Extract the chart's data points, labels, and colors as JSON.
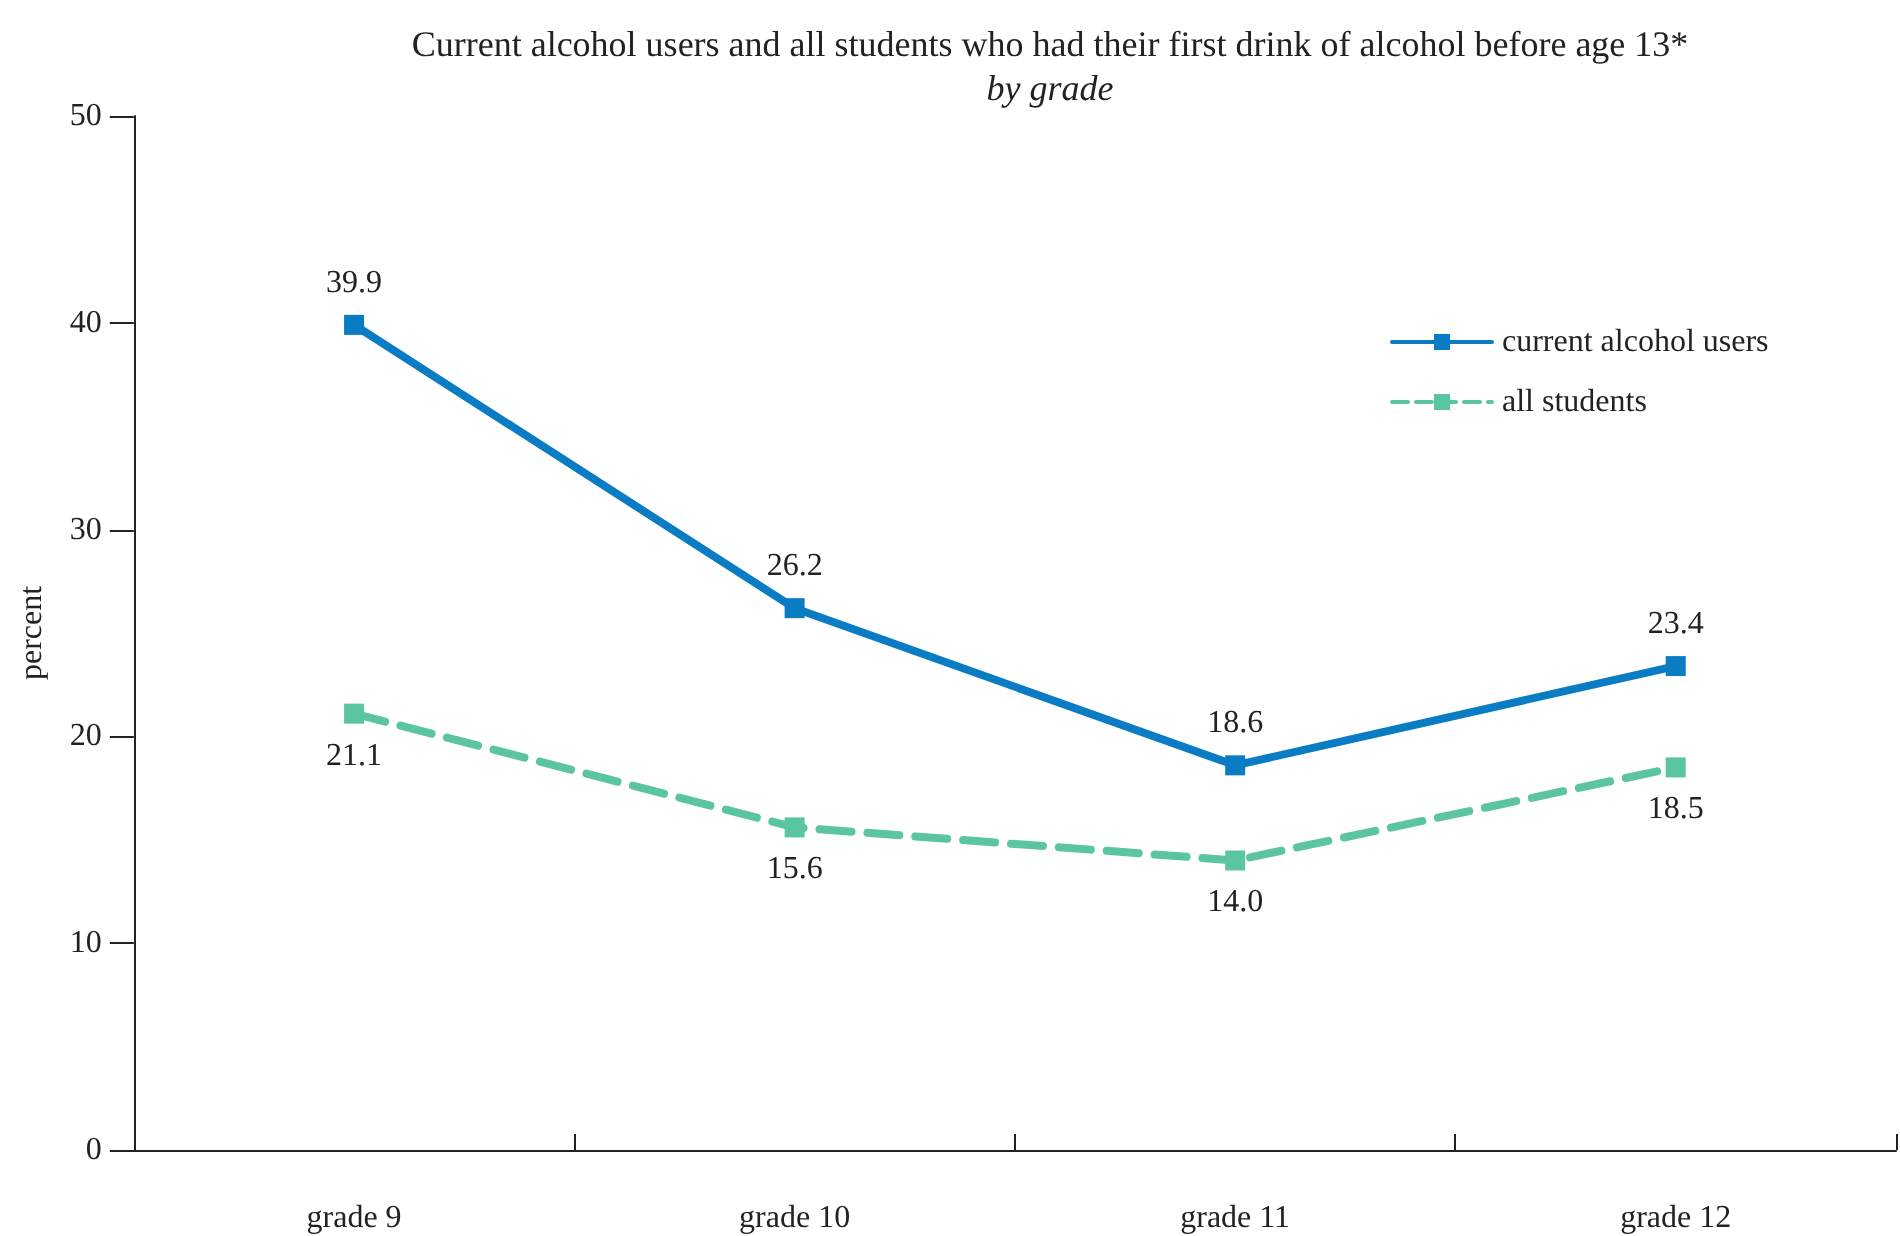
{
  "chart_data": {
    "type": "line",
    "title": "Current alcohol users and all students who had their first drink of alcohol before age 13*",
    "subtitle": "by grade",
    "ylabel": "percent",
    "categories": [
      "grade 9",
      "grade 10",
      "grade 11",
      "grade 12"
    ],
    "series": [
      {
        "name": "current alcohol users",
        "color": "#0a7cc4",
        "values": [
          39.9,
          26.2,
          18.6,
          23.4
        ],
        "value_labels": [
          "39.9",
          "26.2",
          "18.6",
          "23.4"
        ],
        "line_style": "solid"
      },
      {
        "name": "all students",
        "color": "#5bc4a0",
        "values": [
          21.1,
          15.6,
          14.0,
          18.5
        ],
        "value_labels": [
          "21.1",
          "15.6",
          "14.0",
          "18.5"
        ],
        "line_style": "dashed"
      }
    ],
    "ylim": [
      0,
      50
    ],
    "yticks": [
      0,
      10,
      20,
      30,
      40,
      50
    ],
    "grid": false,
    "legend": "top right",
    "marker": "square"
  }
}
